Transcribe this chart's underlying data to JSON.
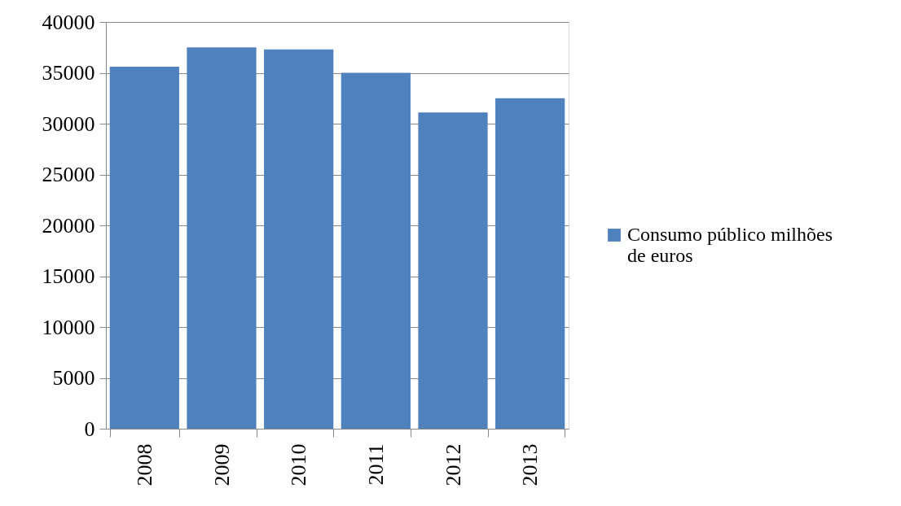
{
  "chart_data": {
    "type": "bar",
    "categories": [
      "2008",
      "2009",
      "2010",
      "2011",
      "2012",
      "2013"
    ],
    "series": [
      {
        "name": "Consumo público milhões de euros",
        "color": "#4f81bd",
        "values": [
          35600,
          37500,
          37300,
          35000,
          31100,
          32500
        ]
      }
    ],
    "ylim": [
      0,
      40000
    ],
    "yticks": [
      0,
      5000,
      10000,
      15000,
      20000,
      25000,
      30000,
      35000,
      40000
    ],
    "grid": "y",
    "legend": "right"
  }
}
